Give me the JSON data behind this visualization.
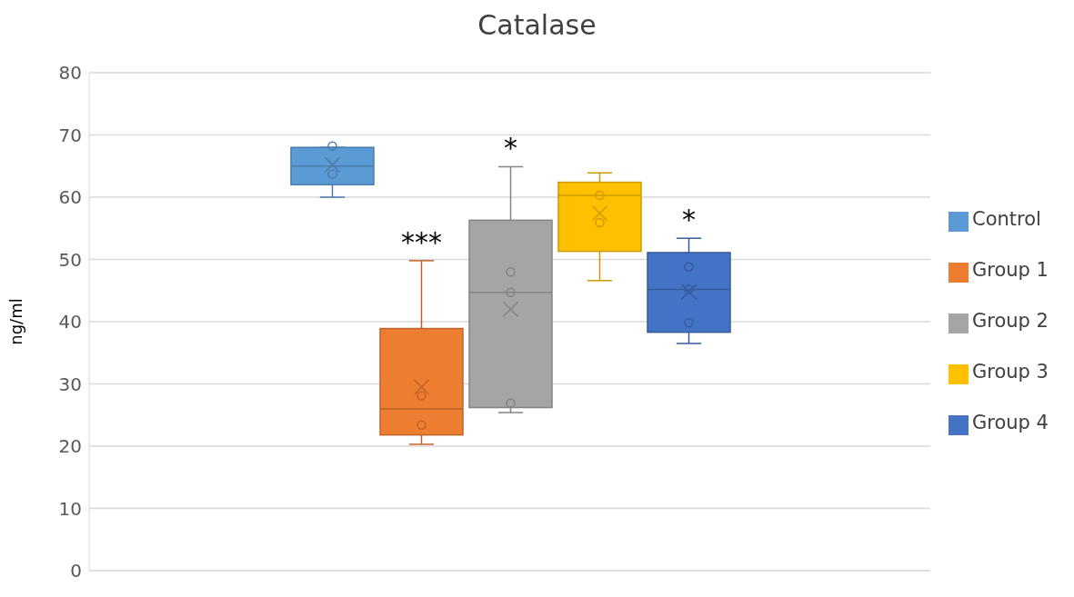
{
  "chart_data": {
    "type": "box",
    "title": "Catalase",
    "ylabel": "ng/ml",
    "categories": [
      null
    ],
    "ylim": [
      0,
      80
    ],
    "yticks": [
      0,
      10,
      20,
      30,
      40,
      50,
      60,
      70,
      80
    ],
    "grid": "y",
    "legend": "right",
    "tick_labels": "y",
    "series": [
      {
        "name": "Control",
        "color": "#5b9bd5",
        "boxes": [
          {
            "low": 60,
            "q1": 62,
            "median": 65,
            "q3": 68,
            "high": 68,
            "mean": 65.2,
            "outliers": [
              68.2,
              63.7
            ]
          }
        ],
        "value_labels": [
          null
        ]
      },
      {
        "name": "Group 1",
        "color": "#ed7d31",
        "boxes": [
          {
            "low": 20.3,
            "q1": 21.8,
            "median": 26,
            "q3": 38.9,
            "high": 49.8,
            "mean": 29.5,
            "outliers": [
              28.1,
              23.4
            ]
          }
        ],
        "value_labels": [
          "***"
        ]
      },
      {
        "name": "Group 2",
        "color": "#a5a5a5",
        "boxes": [
          {
            "low": 25.4,
            "q1": 26.2,
            "median": 44.7,
            "q3": 56.3,
            "high": 64.9,
            "mean": 42,
            "outliers": [
              48,
              44.7,
              26.9
            ]
          }
        ],
        "value_labels": [
          "*"
        ]
      },
      {
        "name": "Group 3",
        "color": "#ffc000",
        "boxes": [
          {
            "low": 46.6,
            "q1": 51.3,
            "median": 60.3,
            "q3": 62.4,
            "high": 63.9,
            "mean": 57.4,
            "outliers": [
              60.3,
              55.9
            ]
          }
        ],
        "value_labels": [
          null
        ]
      },
      {
        "name": "Group 4",
        "color": "#4472c4",
        "boxes": [
          {
            "low": 36.5,
            "q1": 38.3,
            "median": 45.2,
            "q3": 51.1,
            "high": 53.4,
            "mean": 44.8,
            "outliers": [
              48.8,
              45.2,
              39.8
            ]
          }
        ],
        "value_labels": [
          "*"
        ]
      }
    ]
  }
}
